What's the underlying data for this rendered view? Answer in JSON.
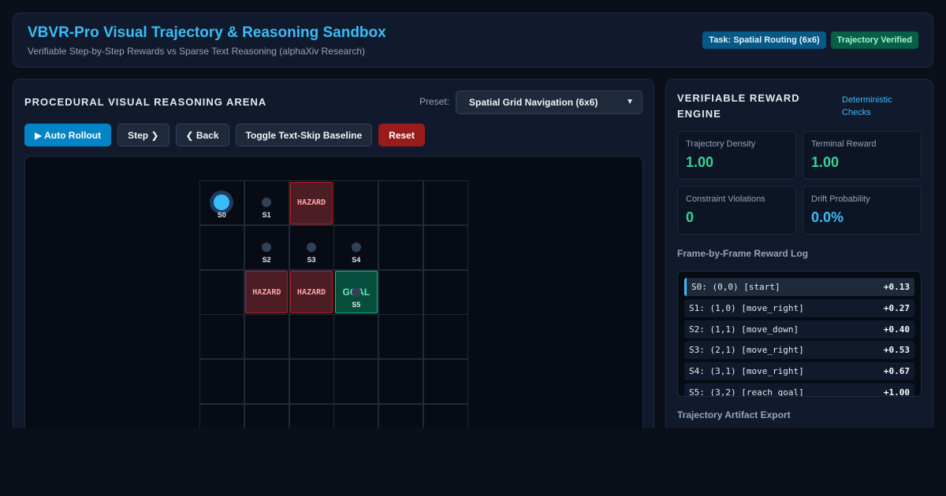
{
  "header": {
    "title": "VBVR-Pro Visual Trajectory & Reasoning Sandbox",
    "subtitle": "Verifiable Step-by-Step Rewards vs Sparse Text Reasoning (alphaXiv Research)",
    "badge_task": "Task: Spatial Routing (6x6)",
    "badge_status": "Trajectory Verified"
  },
  "arena": {
    "title": "PROCEDURAL VISUAL REASONING ARENA",
    "preset_label": "Preset:",
    "preset_value": "Spatial Grid Navigation (6x6)",
    "buttons": {
      "auto_rollout": "▶ Auto Rollout",
      "step": "Step ❯",
      "back": "❮ Back",
      "toggle_baseline": "Toggle Text-Skip Baseline",
      "reset": "Reset"
    },
    "grid": {
      "size": 6,
      "hazards": [
        [
          2,
          0
        ],
        [
          1,
          2
        ],
        [
          2,
          2
        ]
      ],
      "hazard_label": "HAZARD",
      "goal": [
        3,
        2
      ],
      "goal_label": "GOAL",
      "steps": [
        {
          "label": "S0",
          "cell": [
            0,
            0
          ],
          "current": true
        },
        {
          "label": "S1",
          "cell": [
            1,
            0
          ]
        },
        {
          "label": "S2",
          "cell": [
            1,
            1
          ]
        },
        {
          "label": "S3",
          "cell": [
            2,
            1
          ]
        },
        {
          "label": "S4",
          "cell": [
            3,
            1
          ]
        },
        {
          "label": "S5",
          "cell": [
            3,
            2
          ]
        }
      ]
    }
  },
  "engine": {
    "title": "VERIFIABLE REWARD ENGINE",
    "link": "Deterministic Checks",
    "metrics": {
      "density": {
        "label": "Trajectory Density",
        "value": "1.00",
        "color": "#34d399"
      },
      "terminal": {
        "label": "Terminal Reward",
        "value": "1.00",
        "color": "#34d399"
      },
      "violations": {
        "label": "Constraint Violations",
        "value": "0",
        "color": "#34d399"
      },
      "drift": {
        "label": "Drift Probability",
        "value": "0.0%",
        "color": "#38bdf8"
      }
    },
    "log_title": "Frame-by-Frame Reward Log",
    "log": [
      {
        "text": "S0: (0,0) [start]",
        "value": "+0.13"
      },
      {
        "text": "S1: (1,0) [move_right]",
        "value": "+0.27"
      },
      {
        "text": "S2: (1,1) [move_down]",
        "value": "+0.40"
      },
      {
        "text": "S3: (2,1) [move_right]",
        "value": "+0.53"
      },
      {
        "text": "S4: (3,1) [move_right]",
        "value": "+0.67"
      },
      {
        "text": "S5: (3,2) [reach_goal]",
        "value": "+1.00"
      }
    ],
    "export_title": "Trajectory Artifact Export"
  }
}
